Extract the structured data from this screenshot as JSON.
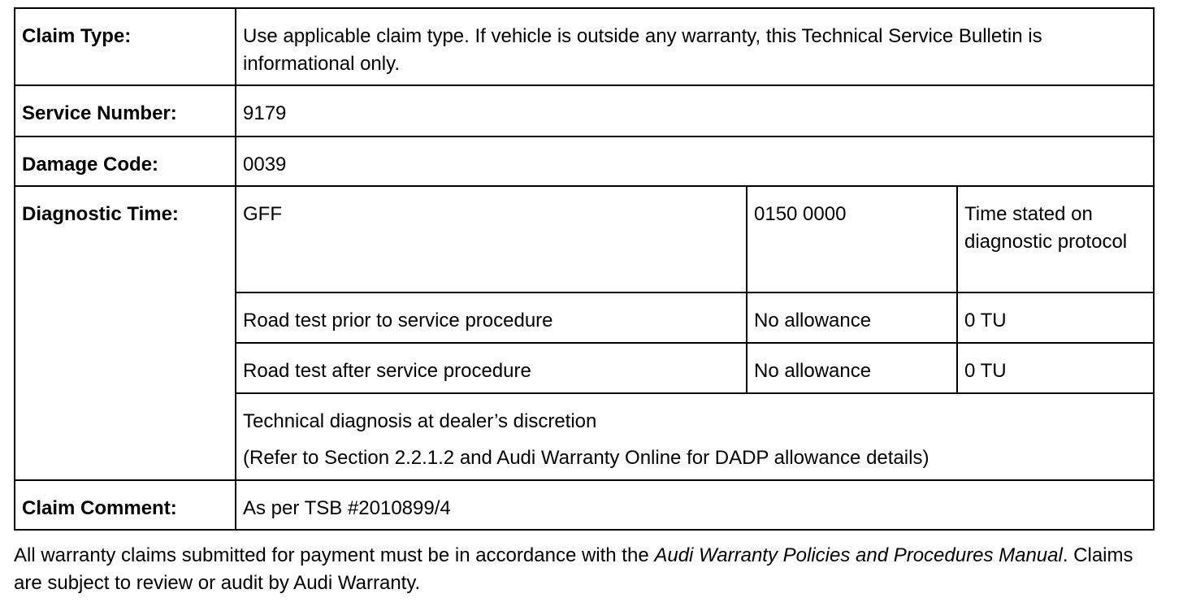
{
  "table": {
    "claim_type": {
      "label": "Claim Type:",
      "value": "Use applicable claim type. If vehicle is outside any warranty, this Technical Service Bulletin is informational only."
    },
    "service_number": {
      "label": "Service Number:",
      "value": "9179"
    },
    "damage_code": {
      "label": "Damage Code:",
      "value": "0039"
    },
    "diagnostic_time": {
      "label": "Diagnostic Time:",
      "rows": [
        {
          "description": "GFF",
          "code": "0150 0000",
          "time": "Time stated on diagnostic protocol"
        },
        {
          "description": "Road test prior to service procedure",
          "code": "No allowance",
          "time": "0 TU"
        },
        {
          "description": "Road test after service procedure",
          "code": "No allowance",
          "time": "0 TU"
        }
      ],
      "note_line1": "Technical diagnosis at dealer’s discretion",
      "note_line2": "(Refer to Section 2.2.1.2 and Audi Warranty Online for DADP allowance details)"
    },
    "claim_comment": {
      "label": "Claim Comment:",
      "value": "As per TSB #2010899/4"
    }
  },
  "footer": {
    "text_before": "All warranty claims submitted for payment must be in accordance with the ",
    "manual_title": "Audi Warranty Policies and Procedures Manual",
    "text_after": ". Claims are subject to review or audit by Audi Warranty."
  }
}
